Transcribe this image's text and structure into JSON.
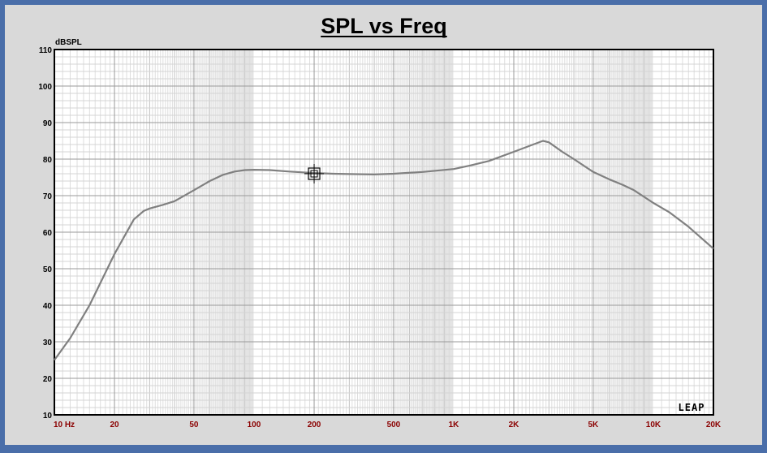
{
  "chart_data": {
    "type": "line",
    "title": "SPL vs Freq",
    "ylabel": "dBSPL",
    "xlabel": "",
    "xscale": "log",
    "xlim": [
      10,
      20000
    ],
    "ylim": [
      10,
      110
    ],
    "grid": true,
    "x_tick_labels": [
      {
        "x": 10,
        "label": "10 Hz"
      },
      {
        "x": 20,
        "label": "20"
      },
      {
        "x": 50,
        "label": "50"
      },
      {
        "x": 100,
        "label": "100"
      },
      {
        "x": 200,
        "label": "200"
      },
      {
        "x": 500,
        "label": "500"
      },
      {
        "x": 1000,
        "label": "1K"
      },
      {
        "x": 2000,
        "label": "2K"
      },
      {
        "x": 5000,
        "label": "5K"
      },
      {
        "x": 10000,
        "label": "10K"
      },
      {
        "x": 20000,
        "label": "20K"
      }
    ],
    "y_ticks": [
      10,
      20,
      30,
      40,
      50,
      60,
      70,
      80,
      90,
      100,
      110
    ],
    "series": [
      {
        "color": "#808080",
        "x": [
          10,
          12,
          15,
          20,
          25,
          28,
          30,
          35,
          40,
          50,
          60,
          70,
          80,
          90,
          100,
          120,
          150,
          200,
          250,
          300,
          400,
          500,
          700,
          1000,
          1200,
          1500,
          2000,
          2500,
          2800,
          3000,
          3500,
          4000,
          5000,
          6000,
          7000,
          8000,
          10000,
          12000,
          15000,
          20000
        ],
        "y": [
          25,
          31,
          40,
          54,
          63.5,
          65.8,
          66.5,
          67.5,
          68.5,
          71.5,
          74,
          75.7,
          76.6,
          77,
          77.1,
          77,
          76.6,
          76.2,
          76,
          75.9,
          75.8,
          76,
          76.5,
          77.3,
          78.2,
          79.5,
          82,
          84,
          85,
          84.6,
          82,
          80,
          76.5,
          74.5,
          73,
          71.5,
          68,
          65.5,
          61.5,
          55.5
        ]
      }
    ],
    "marker": {
      "x": 200,
      "y": 76
    },
    "logo_text": "LEAP"
  }
}
